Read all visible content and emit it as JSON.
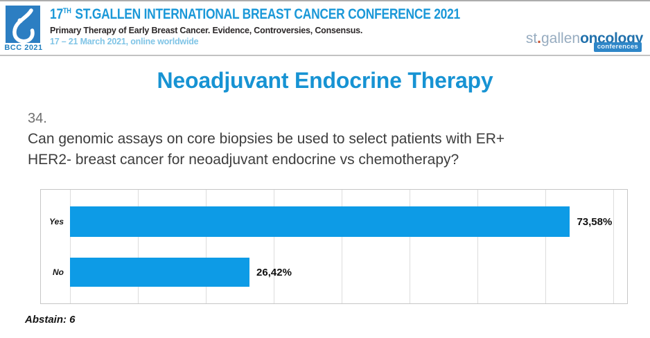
{
  "header": {
    "badge_label": "BCC 2021",
    "title_num": "17",
    "title_sup": "TH",
    "title_main": "ST.GALLEN INTERNATIONAL BREAST CANCER CONFERENCE 2021",
    "subtitle": "Primary Therapy of Early Breast Cancer. Evidence, Controversies, Consensus.",
    "dates": "17 – 21 March 2021, online worldwide",
    "brand": {
      "part_st": "st",
      "part_dot": ".",
      "part_gallen": "gallen",
      "part_oncology": "oncology",
      "part_conferences": "conferences"
    }
  },
  "slide": {
    "title": "Neoadjuvant Endocrine Therapy",
    "question_number": "34.",
    "question_lines": [
      "Can genomic assays on core biopsies be used to select patients with ER+",
      "HER2- breast cancer for neoadjuvant endocrine vs chemotherapy?"
    ],
    "abstain_label": "Abstain: 6"
  },
  "chart_data": {
    "type": "bar",
    "orientation": "horizontal",
    "title": "",
    "categories": [
      "Yes",
      "No"
    ],
    "values": [
      73.58,
      26.42
    ],
    "value_labels": [
      "73,58%",
      "26,42%"
    ],
    "xlim": [
      0,
      82
    ],
    "gridline_interval": 10,
    "grid": true,
    "legend": false,
    "bar_color": "#0d9be6"
  },
  "colors": {
    "header_blue": "#1b98d8",
    "slide_title_blue": "#1793d3",
    "bar_blue": "#0d9be6",
    "dates_light_blue": "#7fc4e6",
    "logo_box_blue": "#2c7ec2",
    "brand_gray_blue": "#97acc0",
    "brand_dark_blue": "#2171ac",
    "brand_dot_orange": "#c6502e"
  }
}
